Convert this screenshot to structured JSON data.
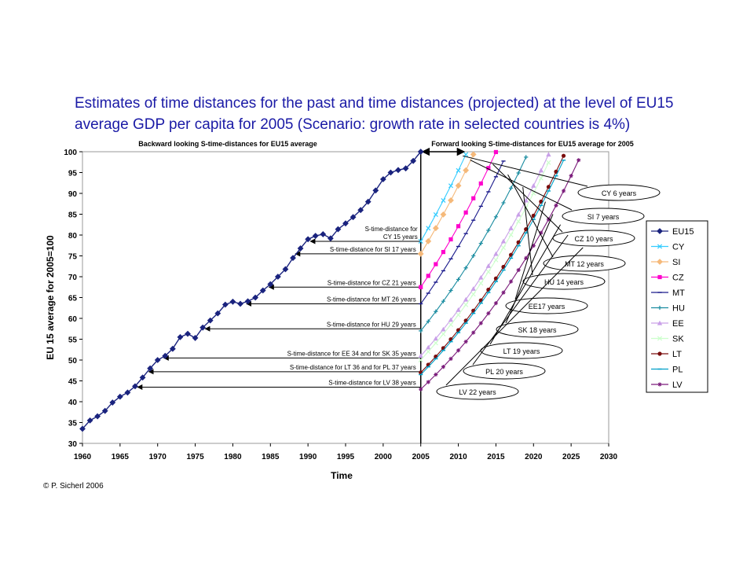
{
  "title_line1": "Estimates of time distances for the past and time distances (projected) at the level of  EU15",
  "title_line2": "average GDP per capita for 2005  (Scenario: growth rate in selected countries is 4%)",
  "copyright": "© P. Sicherl 2006",
  "chart_data": {
    "type": "line",
    "xlabel": "Time",
    "ylabel": "EU 15 average for 2005=100",
    "xlim": [
      1960,
      2030
    ],
    "ylim": [
      30,
      100
    ],
    "xticks": [
      1960,
      1965,
      1970,
      1975,
      1980,
      1985,
      1990,
      1995,
      2000,
      2005,
      2010,
      2015,
      2020,
      2025,
      2030
    ],
    "yticks": [
      30,
      35,
      40,
      45,
      50,
      55,
      60,
      65,
      70,
      75,
      80,
      85,
      90,
      95,
      100
    ],
    "grid": false,
    "legend_position": "right",
    "section_labels": {
      "backward": "Backward looking S-time-distances for EU15 average",
      "forward": "Forward looking S-time-distances for EU15 average for 2005"
    },
    "colors": {
      "EU15": "#1a237e",
      "CY": "#33ccff",
      "SI": "#f5b97a",
      "CZ": "#ff00cc",
      "MT": "#1a1a8c",
      "HU": "#1a8ca0",
      "EE": "#c9a0e8",
      "SK": "#ccffcc",
      "LT": "#7a0d0d",
      "PL": "#00a0c8",
      "LV": "#7a1a7a"
    },
    "eu15": {
      "x": [
        1960,
        1961,
        1962,
        1963,
        1964,
        1965,
        1966,
        1967,
        1968,
        1969,
        1970,
        1971,
        1972,
        1973,
        1974,
        1975,
        1976,
        1977,
        1978,
        1979,
        1980,
        1981,
        1982,
        1983,
        1984,
        1985,
        1986,
        1987,
        1988,
        1989,
        1990,
        1991,
        1992,
        1993,
        1994,
        1995,
        1996,
        1997,
        1998,
        1999,
        2000,
        2001,
        2002,
        2003,
        2004,
        2005
      ],
      "y": [
        33.5,
        35.5,
        36.5,
        37.8,
        39.8,
        41.2,
        42.2,
        43.7,
        45.8,
        48.0,
        50.0,
        51.0,
        52.7,
        55.5,
        56.3,
        55.3,
        57.8,
        59.5,
        61.2,
        63.3,
        64.0,
        63.5,
        64.1,
        65.0,
        66.7,
        68.2,
        70.0,
        71.8,
        74.5,
        76.8,
        79.0,
        79.8,
        80.2,
        79.2,
        81.4,
        82.8,
        84.3,
        86.0,
        88.0,
        90.7,
        93.4,
        95.0,
        95.6,
        96.0,
        97.8,
        100
      ]
    },
    "projections": [
      {
        "name": "CY",
        "start": 78.5
      },
      {
        "name": "SI",
        "start": 75.5
      },
      {
        "name": "CZ",
        "start": 67.5
      },
      {
        "name": "MT",
        "start": 63.5
      },
      {
        "name": "HU",
        "start": 57.0
      },
      {
        "name": "EE",
        "start": 51.0
      },
      {
        "name": "SK",
        "start": 50.0
      },
      {
        "name": "LT",
        "start": 47.0
      },
      {
        "name": "PL",
        "start": 46.5
      },
      {
        "name": "LV",
        "start": 43.0
      }
    ],
    "growth_rate": 0.04,
    "backward_annotations": [
      {
        "text": "S-time-distance for",
        "text2": "CY 15 years",
        "from": 2005,
        "to": 1990,
        "y": 78.5
      },
      {
        "text": "S-time-distance for SI 17 years",
        "from": 2005,
        "to": 1988,
        "y": 75.5
      },
      {
        "text": "S-time-distance for CZ 21 years",
        "from": 2005,
        "to": 1984.5,
        "y": 67.5
      },
      {
        "text": "S-time-distance for MT 26 years",
        "from": 2005,
        "to": 1981.5,
        "y": 63.5
      },
      {
        "text": "S-time-distance for HU 29 years",
        "from": 2005,
        "to": 1976,
        "y": 57.5
      },
      {
        "text": "S-time-distance for EE 34 and for SK 35 years",
        "from": 2005,
        "to": 1970.5,
        "y": 50.5
      },
      {
        "text": "S-time-distance for LT 36 and for PL 37 years",
        "from": 2005,
        "to": 1968.5,
        "y": 47.2
      },
      {
        "text": "S-time-distance for LV 38 years",
        "from": 2005,
        "to": 1967,
        "y": 43.5
      }
    ],
    "forward_callouts": [
      {
        "text": "CY 6 years",
        "year": 2011,
        "y": 99.5
      },
      {
        "text": "SI 7 years",
        "year": 2012,
        "y": 98.5
      },
      {
        "text": "CZ 10 years",
        "year": 2015,
        "y": 97.5
      },
      {
        "text": "MT 12 years",
        "year": 2017,
        "y": 95.0
      },
      {
        "text": "HU 14 years",
        "year": 2019,
        "y": 92.0
      },
      {
        "text": "EE17 years",
        "year": 2022,
        "y": 88.5
      },
      {
        "text": "SK 18 years",
        "year": 2023,
        "y": 85.5
      },
      {
        "text": "LT 19 years",
        "year": 2024,
        "y": 83.0
      },
      {
        "text": "PL 20 years",
        "year": 2025,
        "y": 80.5
      },
      {
        "text": "LV 22 years",
        "year": 2027,
        "y": 77.5
      }
    ]
  }
}
